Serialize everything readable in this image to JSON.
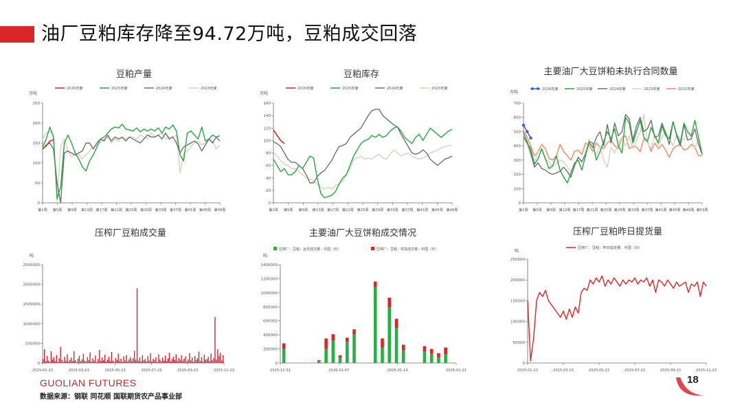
{
  "header": {
    "title": "油厂豆粕库存降至94.72万吨，豆粕成交回落",
    "accent": "#d9262b"
  },
  "footer": {
    "logo": "GUOLIAN FUTURES",
    "source": "数据来源：钢联  同花顺  国联期货农产品事业部",
    "page": "18"
  },
  "chart_data": [
    {
      "id": "production",
      "type": "line",
      "title": "豆粕产量",
      "ylabel": "万吨",
      "ylim": [
        0,
        250
      ],
      "yticks": [
        0,
        50,
        100,
        150,
        200,
        250
      ],
      "xlabels": [
        "第1周",
        "第5周",
        "第9周",
        "第13周",
        "第17周",
        "第21周",
        "第25周",
        "第29周",
        "第33周",
        "第37周",
        "第41周",
        "第45周",
        "第49周"
      ],
      "series": [
        {
          "name": "2026年度",
          "color": "#d9262b",
          "values": [
            135,
            143,
            155,
            158
          ]
        },
        {
          "name": "2025年度",
          "color": "#27a544",
          "values": [
            140,
            160,
            190,
            165,
            10,
            40,
            150,
            170,
            150,
            125,
            110,
            90,
            80,
            105,
            120,
            140,
            160,
            165,
            175,
            185,
            190,
            188,
            197,
            185,
            183,
            180,
            188,
            178,
            185,
            180,
            185,
            180,
            188,
            175,
            190,
            185,
            195,
            180,
            120,
            105,
            175,
            180,
            170,
            160,
            190,
            155,
            160,
            170,
            165,
            168
          ]
        },
        {
          "name": "2024年度",
          "color": "#6f6f6f",
          "values": [
            135,
            145,
            150,
            135,
            50,
            0,
            125,
            130,
            125,
            120,
            125,
            130,
            150,
            150,
            135,
            150,
            160,
            155,
            170,
            155,
            165,
            160,
            165,
            155,
            165,
            160,
            155,
            150,
            160,
            170,
            165,
            165,
            170,
            160,
            175,
            160,
            165,
            150,
            125,
            140,
            145,
            150,
            155,
            148,
            130,
            145,
            160,
            150,
            165,
            155
          ]
        },
        {
          "name": "2023年度",
          "color": "#d6d3bd",
          "values": [
            160,
            175,
            180,
            170,
            5,
            140,
            160,
            130,
            115,
            120,
            120,
            110,
            120,
            130,
            140,
            145,
            150,
            160,
            165,
            150,
            160,
            155,
            165,
            160,
            165,
            165,
            160,
            170,
            165,
            160,
            175,
            165,
            170,
            175,
            160,
            165,
            165,
            170,
            75,
            125,
            130,
            140,
            150,
            155,
            145,
            150,
            160,
            155,
            135,
            145
          ]
        }
      ]
    },
    {
      "id": "inventory",
      "type": "line",
      "title": "豆粕库存",
      "ylabel": "万吨",
      "ylim": [
        0,
        160
      ],
      "yticks": [
        0,
        20,
        40,
        60,
        80,
        100,
        120,
        140,
        160
      ],
      "xlabels": [
        "第1周",
        "第5周",
        "第9周",
        "第13周",
        "第17周",
        "第21周",
        "第25周",
        "第29周",
        "第33周",
        "第37周",
        "第41周",
        "第45周",
        "第49周"
      ],
      "series": [
        {
          "name": "2026年度",
          "color": "#d9262b",
          "values": [
            117,
            108,
            100,
            95
          ]
        },
        {
          "name": "2025年度",
          "color": "#27a544",
          "values": [
            70,
            60,
            50,
            55,
            45,
            45,
            50,
            60,
            55,
            65,
            75,
            72,
            40,
            15,
            8,
            10,
            12,
            18,
            30,
            40,
            45,
            60,
            75,
            85,
            95,
            100,
            102,
            108,
            105,
            110,
            105,
            108,
            115,
            120,
            122,
            115,
            105,
            100,
            95,
            105,
            110,
            100,
            110,
            120,
            115,
            110,
            105,
            110,
            115,
            118
          ]
        },
        {
          "name": "2024年度",
          "color": "#6f6f6f",
          "values": [
            98,
            95,
            90,
            80,
            70,
            65,
            65,
            60,
            55,
            45,
            32,
            32,
            42,
            48,
            52,
            60,
            68,
            80,
            90,
            92,
            95,
            105,
            110,
            115,
            120,
            130,
            140,
            148,
            150,
            150,
            140,
            135,
            130,
            125,
            122,
            110,
            100,
            90,
            80,
            78,
            80,
            85,
            80,
            70,
            65,
            60,
            65,
            70,
            72,
            75
          ]
        },
        {
          "name": "2023年度",
          "color": "#d6d3bd",
          "values": [
            82,
            75,
            68,
            62,
            60,
            55,
            55,
            50,
            45,
            40,
            38,
            35,
            30,
            25,
            22,
            25,
            22,
            28,
            30,
            35,
            45,
            55,
            70,
            72,
            75,
            70,
            72,
            70,
            75,
            78,
            72,
            70,
            78,
            85,
            80,
            75,
            78,
            80,
            75,
            72,
            70,
            72,
            75,
            80,
            82,
            85,
            88,
            90,
            92,
            92
          ]
        }
      ]
    },
    {
      "id": "contracts",
      "type": "line",
      "title": "主要油厂大豆饼粕未执行合同数量",
      "ylabel": "万吨",
      "ylim": [
        0,
        700
      ],
      "yticks": [
        0,
        100,
        200,
        300,
        400,
        500,
        600,
        700
      ],
      "xlabels": [
        "第1周",
        "第5周",
        "第9周",
        "第13周",
        "第17周",
        "第21周",
        "第25周",
        "第29周",
        "第33周",
        "第37周",
        "第41周",
        "第45周",
        "第49周",
        "第53周"
      ],
      "series": [
        {
          "name": "2026年度",
          "color": "#3a63c7",
          "values": [
            545,
            500,
            455
          ]
        },
        {
          "name": "2025年度",
          "color": "#27a544",
          "values": [
            460,
            420,
            380,
            270,
            310,
            380,
            310,
            240,
            260,
            330,
            230,
            180,
            140,
            210,
            280,
            300,
            230,
            330,
            430,
            420,
            300,
            360,
            430,
            500,
            450,
            520,
            400,
            350,
            600,
            560,
            420,
            500,
            580,
            460,
            430,
            530,
            470,
            420,
            540,
            470,
            450,
            570,
            480,
            420,
            560,
            500,
            470,
            580,
            460,
            340
          ]
        },
        {
          "name": "2024年度",
          "color": "#6f6f6f",
          "values": [
            490,
            430,
            350,
            250,
            280,
            240,
            230,
            210,
            200,
            210,
            220,
            250,
            220,
            180,
            260,
            320,
            290,
            340,
            420,
            390,
            460,
            500,
            400,
            550,
            420,
            560,
            470,
            500,
            620,
            590,
            440,
            540,
            600,
            500,
            520,
            580,
            460,
            470,
            560,
            490,
            410,
            570,
            470,
            400,
            550,
            440,
            450,
            520,
            410,
            340
          ]
        },
        {
          "name": "2023年度",
          "color": "#d6d3bd",
          "values": [
            480,
            410,
            330,
            280,
            360,
            370,
            300,
            290,
            250,
            280,
            300,
            290,
            250,
            220,
            260,
            320,
            280,
            360,
            450,
            370,
            340,
            400,
            300,
            250,
            390,
            350,
            420,
            460,
            400,
            470,
            380,
            440,
            500,
            620,
            420,
            380,
            480,
            400,
            460,
            500,
            450,
            400,
            480,
            450,
            440,
            500,
            460,
            380,
            450,
            340
          ]
        },
        {
          "name": "2022年度",
          "color": "#ed8a62",
          "values": [
            510,
            460,
            400,
            330,
            360,
            410,
            380,
            310,
            300,
            330,
            410,
            360,
            330,
            300,
            360,
            370,
            340,
            420,
            400,
            360,
            420,
            390,
            380,
            420,
            440,
            400,
            380,
            460,
            470,
            380,
            400,
            390,
            360,
            450,
            430,
            360,
            420,
            380,
            410,
            370,
            320,
            380,
            400,
            410,
            370,
            380,
            410,
            390,
            330,
            330
          ]
        }
      ]
    },
    {
      "id": "deals",
      "type": "bar",
      "title": "压榨厂豆粕成交量",
      "ylabel": "吨",
      "ylim": [
        0,
        2500000
      ],
      "yticks": [
        0,
        500000,
        1000000,
        1500000,
        2000000,
        2500000
      ],
      "xlabels": [
        "2025-01-23",
        "2025-03-23",
        "2025-05-23",
        "2025-07-23",
        "2025-09-23",
        "2025-11-23"
      ],
      "color": "#cc2230",
      "values": [
        100000,
        350000,
        40000,
        180000,
        60000,
        20000,
        300000,
        90000,
        150000,
        45000,
        200000,
        30000,
        120000,
        410000,
        80000,
        25000,
        160000,
        60000,
        220000,
        35000,
        90000,
        140000,
        50000,
        300000,
        70000,
        20000,
        110000,
        180000,
        45000,
        95000,
        230000,
        60000,
        30000,
        150000,
        80000,
        270000,
        40000,
        120000,
        65000,
        190000,
        25000,
        100000,
        330000,
        55000,
        140000,
        70000,
        210000,
        35000,
        90000,
        160000,
        45000,
        280000,
        60000,
        20000,
        130000,
        75000,
        240000,
        50000,
        110000,
        30000,
        170000,
        65000,
        200000,
        40000,
        95000,
        150000,
        55000,
        120000,
        310000,
        80000,
        1900000,
        60000,
        140000,
        45000,
        200000,
        70000,
        100000,
        35000,
        180000,
        60000,
        250000,
        45000,
        110000,
        75000,
        150000,
        30000,
        220000,
        90000,
        40000,
        140000,
        60000,
        190000,
        50000,
        120000,
        260000,
        35000,
        100000,
        160000,
        70000,
        220000,
        45000,
        130000,
        80000,
        200000,
        60000,
        110000,
        170000,
        40000,
        90000,
        250000,
        65000,
        140000,
        30000,
        180000,
        75000,
        120000,
        290000,
        55000,
        150000,
        40000,
        210000,
        85000,
        100000,
        160000,
        50000,
        240000,
        70000,
        130000,
        1170000,
        90000,
        350000,
        180000,
        260000,
        60000,
        200000
      ]
    },
    {
      "id": "main-deals",
      "type": "bar",
      "title": "主要油厂大豆饼粕成交情况",
      "ylabel": "吨",
      "ylim": [
        0,
        1400000
      ],
      "yticks": [
        0,
        200000,
        400000,
        600000,
        800000,
        1000000,
        1200000,
        1400000
      ],
      "xlabels": [
        "2025-12-31",
        "2026-01-07",
        "2026-01-14",
        "2026-01-21"
      ],
      "legend": [
        "压榨厂：豆粕：远月成交量：中国（日）",
        "压榨厂：豆粕：现货成交量：中国（日）"
      ],
      "colors": [
        "#27b045",
        "#d9262b"
      ],
      "categories": [
        "d1",
        "d2",
        "d3",
        "d4",
        "d5",
        "d6",
        "d7",
        "d8",
        "d9",
        "d10",
        "d11",
        "d12",
        "d13",
        "d14",
        "d15",
        "d16",
        "d17",
        "d18",
        "d19",
        "d20",
        "d21",
        "d22",
        "d23",
        "d24",
        "d25"
      ],
      "forward": [
        200000,
        0,
        0,
        0,
        0,
        30000,
        200000,
        320000,
        80000,
        300000,
        410000,
        0,
        0,
        1080000,
        220000,
        790000,
        500000,
        180000,
        0,
        0,
        160000,
        130000,
        80000,
        120000,
        0
      ],
      "spot": [
        80000,
        0,
        0,
        0,
        0,
        10000,
        150000,
        90000,
        30000,
        60000,
        70000,
        0,
        0,
        80000,
        130000,
        140000,
        130000,
        80000,
        0,
        0,
        80000,
        70000,
        60000,
        100000,
        0
      ]
    },
    {
      "id": "pickup",
      "type": "line",
      "title": "压榨厂豆粕昨日提货量",
      "ylabel": "吨",
      "ylim": [
        0,
        250000
      ],
      "yticks": [
        0,
        50000,
        100000,
        150000,
        200000,
        250000
      ],
      "xlabels": [
        "2025-01-23",
        "2025-03-23",
        "2025-05-23",
        "2025-07-23",
        "2025-09-23",
        "2025-11-23"
      ],
      "legend": "压榨厂：豆粕：昨日提货量：中国（日）",
      "color": "#d9262b",
      "values": [
        150000,
        5000,
        60000,
        150000,
        170000,
        160000,
        175000,
        150000,
        140000,
        130000,
        120000,
        110000,
        125000,
        105000,
        130000,
        110000,
        135000,
        120000,
        170000,
        180000,
        175000,
        200000,
        190000,
        205000,
        195000,
        210000,
        185000,
        200000,
        190000,
        205000,
        195000,
        185000,
        200000,
        190000,
        200000,
        195000,
        205000,
        190000,
        200000,
        195000,
        205000,
        185000,
        200000,
        170000,
        200000,
        195000,
        185000,
        200000,
        190000,
        180000,
        195000,
        185000,
        190000,
        195000,
        170000,
        190000,
        185000,
        195000,
        160000,
        195000,
        185000
      ]
    }
  ]
}
